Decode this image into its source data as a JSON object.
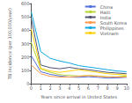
{
  "chart_data": {
    "type": "line",
    "xlabel": "Years since arrival in United States",
    "ylabel": "TB incidence (per 100,000/year)",
    "x": [
      0,
      1,
      2,
      3,
      4,
      5,
      6,
      7,
      8,
      9,
      10
    ],
    "series": [
      {
        "name": "China",
        "values": [
          210,
          90,
          70,
          58,
          50,
          48,
          52,
          48,
          42,
          44,
          48
        ]
      },
      {
        "name": "Haiti",
        "values": [
          310,
          110,
          85,
          68,
          62,
          58,
          62,
          58,
          52,
          52,
          58
        ]
      },
      {
        "name": "India",
        "values": [
          490,
          140,
          120,
          112,
          122,
          112,
          105,
          95,
          85,
          80,
          75
        ]
      },
      {
        "name": "South Korea",
        "values": [
          140,
          75,
          55,
          50,
          50,
          55,
          60,
          55,
          50,
          50,
          50
        ]
      },
      {
        "name": "Philippines",
        "values": [
          540,
          240,
          190,
          170,
          155,
          135,
          125,
          115,
          105,
          95,
          90
        ]
      },
      {
        "name": "Vietnam",
        "values": [
          410,
          115,
          95,
          85,
          95,
          105,
          95,
          85,
          75,
          70,
          65
        ]
      }
    ],
    "xlim": [
      0,
      10
    ],
    "xticks": [
      0,
      1,
      2,
      3,
      4,
      5,
      6,
      7,
      8,
      9,
      10
    ],
    "ylim": [
      0,
      600
    ],
    "yticks": [
      0,
      100,
      200,
      300,
      400,
      500,
      600
    ],
    "grid": false,
    "legend": "upper right"
  }
}
